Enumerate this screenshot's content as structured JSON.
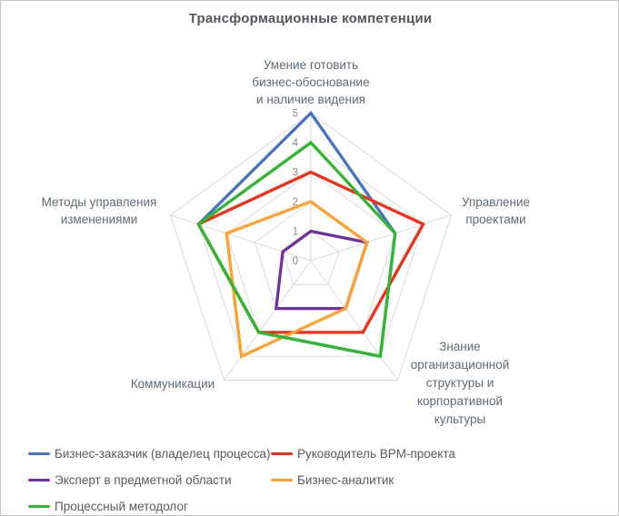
{
  "frame": {
    "background": "#FFFFFF",
    "border_color": "#C6C6C6"
  },
  "chart_data": {
    "type": "radar",
    "title": "Трансформационные компетенции",
    "axes": [
      "Умение готовить\nбизнес-обоснование\nи наличие видения",
      "Управление\nпроектами",
      "Знание\nорганизационной\nструктуры и\nкорпоративной\nкультуры",
      "Коммуникации",
      "Методы управления\nизменениями"
    ],
    "rlim": [
      0,
      5
    ],
    "ticks": [
      0,
      1,
      2,
      3,
      4,
      5
    ],
    "grid": true,
    "legend_position": "bottom",
    "series": [
      {
        "name": "Бизнес-заказчик (владелец процесса)",
        "color": "#4472C4",
        "values": [
          5,
          3,
          4,
          3,
          4
        ]
      },
      {
        "name": "Руководитель BPM-проекта",
        "color": "#F62D16",
        "values": [
          3,
          4,
          3,
          3,
          4
        ]
      },
      {
        "name": "Эксперт в предметной области",
        "color": "#7030A0",
        "values": [
          1,
          2,
          2,
          2,
          1
        ]
      },
      {
        "name": "Бизнес-аналитик",
        "color": "#FFA12B",
        "values": [
          2,
          2,
          2,
          4,
          3
        ]
      },
      {
        "name": "Процессный методолог",
        "color": "#2CB92C",
        "values": [
          4,
          3,
          4,
          3,
          4
        ]
      }
    ]
  },
  "colors": {
    "grid": "#D9D9D9",
    "tick_text": "#8C8783",
    "title_text": "#54565C",
    "axis_label_text": "#5E6A75",
    "legend_text": "#595959"
  }
}
